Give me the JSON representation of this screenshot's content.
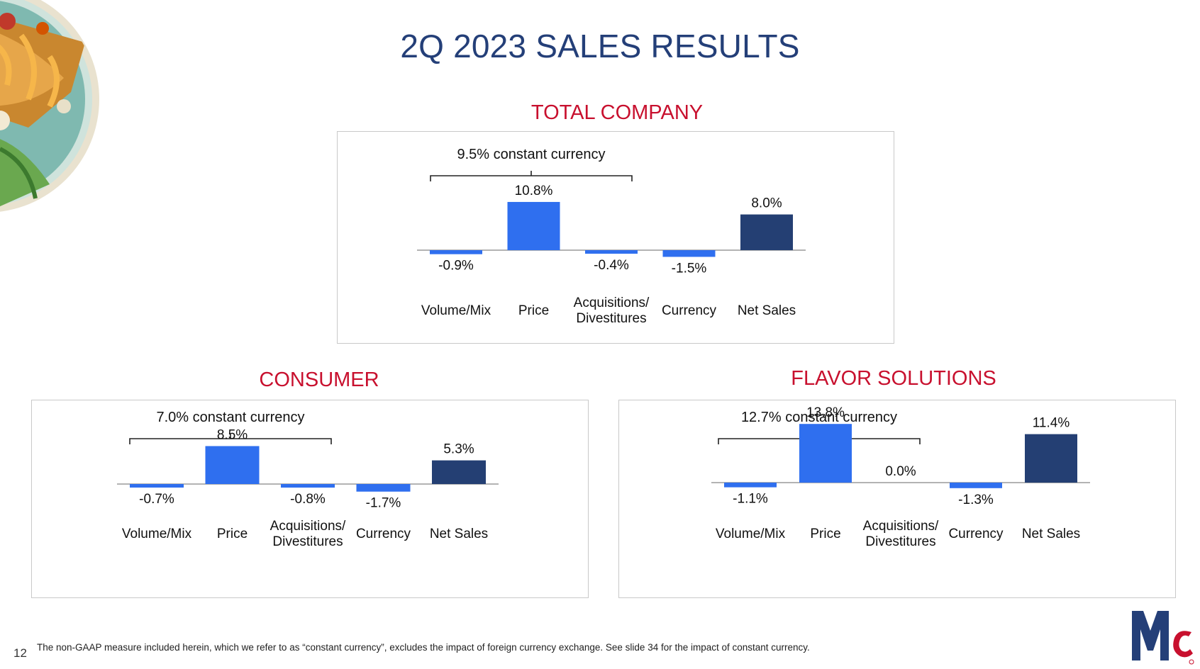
{
  "page": {
    "title": "2Q 2023 SALES RESULTS",
    "number": "12",
    "footnote": "The non-GAAP measure included herein, which we refer to as “constant currency”, excludes the impact of foreign currency exchange. See slide 34 for the impact of constant currency."
  },
  "colors": {
    "title": "#243f78",
    "section_title": "#c8102e",
    "component_bar": "#2f6fef",
    "net_sales_bar": "#243f73"
  },
  "images": {
    "food_photo": "plated food dish photo",
    "logo": "McCormick brand logo"
  },
  "chart_data": [
    {
      "type": "bar",
      "title": "TOTAL COMPANY",
      "bracket_label": "9.5% constant currency",
      "categories": [
        "Volume/Mix",
        "Price",
        "Acquisitions/\nDivestitures",
        "Currency",
        "Net Sales"
      ],
      "values": [
        -0.9,
        10.8,
        -0.4,
        -1.5,
        8.0
      ],
      "value_labels": [
        "-0.9%",
        "10.8%",
        "-0.4%",
        "-1.5%",
        "8.0%"
      ],
      "ylim": [
        -2,
        12
      ]
    },
    {
      "type": "bar",
      "title": "CONSUMER",
      "bracket_label": "7.0% constant currency",
      "categories": [
        "Volume/Mix",
        "Price",
        "Acquisitions/\nDivestitures",
        "Currency",
        "Net Sales"
      ],
      "values": [
        -0.7,
        8.5,
        -0.8,
        -1.7,
        5.3
      ],
      "value_labels": [
        "-0.7%",
        "8.5%",
        "-0.8%",
        "-1.7%",
        "5.3%"
      ],
      "ylim": [
        -2,
        12
      ]
    },
    {
      "type": "bar",
      "title": "FLAVOR SOLUTIONS",
      "bracket_label": "12.7% constant currency",
      "categories": [
        "Volume/Mix",
        "Price",
        "Acquisitions/\nDivestitures",
        "Currency",
        "Net Sales"
      ],
      "values": [
        -1.1,
        13.8,
        0.0,
        -1.3,
        11.4
      ],
      "value_labels": [
        "-1.1%",
        "13.8%",
        "0.0%",
        "-1.3%",
        "11.4%"
      ],
      "ylim": [
        -2,
        15
      ]
    }
  ]
}
